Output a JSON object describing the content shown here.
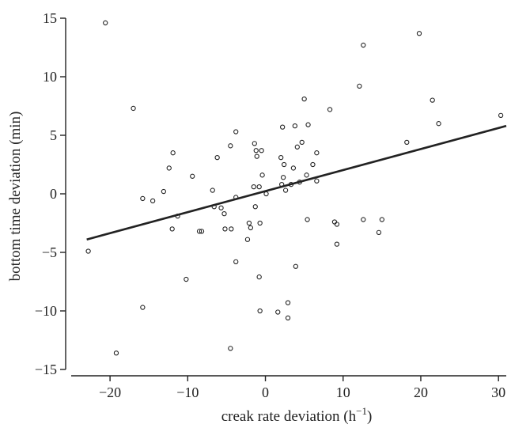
{
  "chart_data": {
    "type": "scatter",
    "xlabel": "creak rate deviation (h",
    "xlabel_sup": "−1",
    "xlabel_suffix": ")",
    "ylabel": "bottom time deviation (min)",
    "xlim": [
      -25,
      31
    ],
    "ylim": [
      -15,
      15
    ],
    "xticks": [
      -20,
      -10,
      0,
      10,
      20,
      30
    ],
    "yticks": [
      -15,
      -10,
      -5,
      0,
      5,
      10,
      15
    ],
    "xtick_labels": [
      "−20",
      "−10",
      "0",
      "10",
      "20",
      "30"
    ],
    "ytick_labels": [
      "−15",
      "−10",
      "−5",
      "0",
      "5",
      "10",
      "15"
    ],
    "grid": false,
    "points": [
      {
        "x": -20.6,
        "y": 14.6
      },
      {
        "x": -17.0,
        "y": 7.3
      },
      {
        "x": -22.8,
        "y": -4.9
      },
      {
        "x": -19.2,
        "y": -13.6
      },
      {
        "x": -15.8,
        "y": -0.4
      },
      {
        "x": -15.8,
        "y": -9.7
      },
      {
        "x": -14.5,
        "y": -0.6
      },
      {
        "x": -13.1,
        "y": 0.2
      },
      {
        "x": -12.4,
        "y": 2.2
      },
      {
        "x": -11.9,
        "y": 3.5
      },
      {
        "x": -12.0,
        "y": -3.0
      },
      {
        "x": -11.3,
        "y": -1.9
      },
      {
        "x": -9.4,
        "y": 1.5
      },
      {
        "x": -10.2,
        "y": -7.3
      },
      {
        "x": -8.5,
        "y": -3.2
      },
      {
        "x": -8.2,
        "y": -3.2
      },
      {
        "x": -6.8,
        "y": 0.3
      },
      {
        "x": -6.6,
        "y": -1.1
      },
      {
        "x": -6.2,
        "y": 3.1
      },
      {
        "x": -5.7,
        "y": -1.2
      },
      {
        "x": -5.3,
        "y": -1.7
      },
      {
        "x": -5.2,
        "y": -3.0
      },
      {
        "x": -4.5,
        "y": 4.1
      },
      {
        "x": -4.4,
        "y": -3.0
      },
      {
        "x": -4.5,
        "y": -13.2
      },
      {
        "x": -3.8,
        "y": 5.3
      },
      {
        "x": -3.8,
        "y": -0.3
      },
      {
        "x": -3.8,
        "y": -5.8
      },
      {
        "x": -2.3,
        "y": -3.9
      },
      {
        "x": -2.1,
        "y": -2.5
      },
      {
        "x": -1.9,
        "y": -2.9
      },
      {
        "x": -1.5,
        "y": 0.6
      },
      {
        "x": -1.4,
        "y": 4.3
      },
      {
        "x": -1.3,
        "y": -1.1
      },
      {
        "x": -1.2,
        "y": 3.7
      },
      {
        "x": -1.1,
        "y": 3.2
      },
      {
        "x": -0.8,
        "y": 0.6
      },
      {
        "x": -0.7,
        "y": -2.5
      },
      {
        "x": -0.8,
        "y": -7.1
      },
      {
        "x": -0.7,
        "y": -10.0
      },
      {
        "x": -0.5,
        "y": 3.7
      },
      {
        "x": -0.4,
        "y": 1.6
      },
      {
        "x": 0.1,
        "y": 0.0
      },
      {
        "x": 1.6,
        "y": -10.1
      },
      {
        "x": 2.0,
        "y": 3.1
      },
      {
        "x": 2.1,
        "y": 0.8
      },
      {
        "x": 2.2,
        "y": 5.7
      },
      {
        "x": 2.3,
        "y": 1.4
      },
      {
        "x": 2.4,
        "y": 2.5
      },
      {
        "x": 2.6,
        "y": 0.3
      },
      {
        "x": 2.9,
        "y": -9.3
      },
      {
        "x": 2.9,
        "y": -10.6
      },
      {
        "x": 3.3,
        "y": 0.8
      },
      {
        "x": 3.6,
        "y": 2.2
      },
      {
        "x": 3.8,
        "y": 5.8
      },
      {
        "x": 3.9,
        "y": -6.2
      },
      {
        "x": 4.1,
        "y": 4.0
      },
      {
        "x": 4.4,
        "y": 1.0
      },
      {
        "x": 4.7,
        "y": 4.4
      },
      {
        "x": 5.0,
        "y": 8.1
      },
      {
        "x": 5.3,
        "y": 1.6
      },
      {
        "x": 5.4,
        "y": -2.2
      },
      {
        "x": 5.5,
        "y": 5.9
      },
      {
        "x": 6.1,
        "y": 2.5
      },
      {
        "x": 6.6,
        "y": 3.5
      },
      {
        "x": 6.6,
        "y": 1.1
      },
      {
        "x": 8.3,
        "y": 7.2
      },
      {
        "x": 8.9,
        "y": -2.4
      },
      {
        "x": 9.2,
        "y": -2.6
      },
      {
        "x": 9.2,
        "y": -4.3
      },
      {
        "x": 12.1,
        "y": 9.2
      },
      {
        "x": 12.6,
        "y": 12.7
      },
      {
        "x": 12.6,
        "y": -2.2
      },
      {
        "x": 14.6,
        "y": -3.3
      },
      {
        "x": 15.0,
        "y": -2.2
      },
      {
        "x": 18.2,
        "y": 4.4
      },
      {
        "x": 19.8,
        "y": 13.7
      },
      {
        "x": 21.5,
        "y": 8.0
      },
      {
        "x": 22.3,
        "y": 6.0
      },
      {
        "x": 30.3,
        "y": 6.7
      }
    ],
    "fit_line": {
      "x1": -23.0,
      "y1": -3.9,
      "x2": 31.0,
      "y2": 5.8
    }
  }
}
